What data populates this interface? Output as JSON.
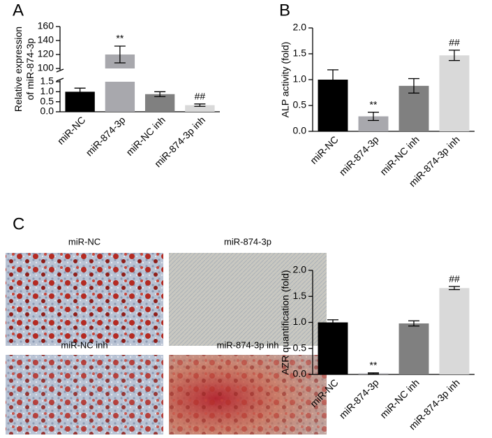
{
  "chart_data": [
    {
      "type": "bar",
      "panel": "A",
      "ylabel": [
        "Relative expression",
        "of miR-874-3p"
      ],
      "categories": [
        "miR-NC",
        "miR-874-3p",
        "miR-NC inh",
        "miR-874-3p inh"
      ],
      "values": [
        1.0,
        120,
        0.88,
        0.33
      ],
      "errors": [
        0.18,
        12,
        0.12,
        0.06
      ],
      "annotations": [
        null,
        "**",
        null,
        "##"
      ],
      "colors": [
        "#000000",
        "#a8a8ad",
        "#808080",
        "#d9d9d9"
      ],
      "ylim": [
        0,
        160
      ],
      "ybreak": [
        1.5,
        100
      ],
      "yticks": [
        {
          "value": 0,
          "label": "0.0"
        },
        0.5,
        {
          "value": 1,
          "label": "1.0"
        },
        1.5,
        100,
        120,
        140,
        160
      ]
    },
    {
      "type": "bar",
      "panel": "B",
      "ylabel": [
        "ALP activity (fold)"
      ],
      "categories": [
        "miR-NC",
        "miR-874-3p",
        "miR-NC inh",
        "miR-874-3p inh"
      ],
      "values": [
        1.0,
        0.29,
        0.88,
        1.47
      ],
      "errors": [
        0.19,
        0.08,
        0.14,
        0.1
      ],
      "annotations": [
        null,
        "**",
        null,
        "##"
      ],
      "colors": [
        "#000000",
        "#a8a8ad",
        "#808080",
        "#d9d9d9"
      ],
      "ylim": [
        0,
        2
      ],
      "yticks": [
        {
          "value": 0,
          "label": "0.0"
        },
        0.5,
        {
          "value": 1,
          "label": "1.0"
        },
        1.5,
        {
          "value": 2,
          "label": "2.0"
        }
      ]
    },
    {
      "type": "bar",
      "panel": "C",
      "ylabel": [
        "AZR quantification (fold)"
      ],
      "categories": [
        "miR-NC",
        "miR-874-3p",
        "miR-NC inh",
        "miR-874-3p inh"
      ],
      "values": [
        1.0,
        0.02,
        0.98,
        1.66
      ],
      "errors": [
        0.05,
        0.01,
        0.05,
        0.03
      ],
      "annotations": [
        null,
        "**",
        null,
        "##"
      ],
      "colors": [
        "#000000",
        "#a8a8ad",
        "#808080",
        "#d9d9d9"
      ],
      "ylim": [
        0,
        2
      ],
      "yticks": [
        {
          "value": 0,
          "label": "0.0"
        },
        0.5,
        {
          "value": 1,
          "label": "1.0"
        },
        1.5,
        {
          "value": 2,
          "label": "2.0"
        }
      ]
    }
  ],
  "images": [
    {
      "label": "miR-NC"
    },
    {
      "label": "miR-874-3p"
    },
    {
      "label": "miR-NC inh"
    },
    {
      "label": "miR-874-3p inh"
    }
  ]
}
